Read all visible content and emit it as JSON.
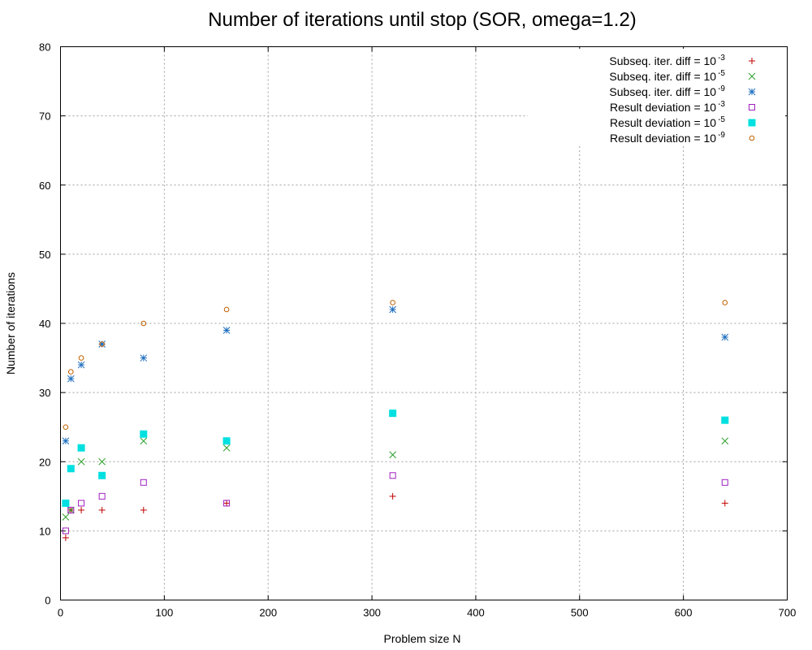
{
  "chart_data": {
    "type": "scatter",
    "title": "Number of iterations until stop (SOR, omega=1.2)",
    "xlabel": "Problem size N",
    "ylabel": "Number of iterations",
    "xlim": [
      0,
      700
    ],
    "ylim": [
      0,
      80
    ],
    "xticks": [
      0,
      100,
      200,
      300,
      400,
      500,
      600,
      700
    ],
    "yticks": [
      0,
      10,
      20,
      30,
      40,
      50,
      60,
      70,
      80
    ],
    "grid": true,
    "legend_position": "top-right",
    "series": [
      {
        "name": "Subseq. iter. diff = 10",
        "sup": "-3",
        "marker": "plus",
        "color": "#c00000",
        "points": [
          [
            5,
            9
          ],
          [
            10,
            13
          ],
          [
            20,
            13
          ],
          [
            40,
            13
          ],
          [
            80,
            13
          ],
          [
            160,
            14
          ],
          [
            320,
            15
          ],
          [
            640,
            14
          ]
        ]
      },
      {
        "name": "Subseq. iter. diff = 10",
        "sup": "-5",
        "marker": "cross",
        "color": "#2ca02c",
        "points": [
          [
            5,
            12
          ],
          [
            10,
            13
          ],
          [
            20,
            20
          ],
          [
            40,
            20
          ],
          [
            80,
            23
          ],
          [
            160,
            22
          ],
          [
            320,
            21
          ],
          [
            640,
            23
          ]
        ]
      },
      {
        "name": "Subseq. iter. diff = 10",
        "sup": "-9",
        "marker": "star",
        "color": "#1f6fbf",
        "points": [
          [
            5,
            23
          ],
          [
            10,
            32
          ],
          [
            20,
            34
          ],
          [
            40,
            37
          ],
          [
            80,
            35
          ],
          [
            160,
            39
          ],
          [
            320,
            42
          ],
          [
            640,
            38
          ]
        ]
      },
      {
        "name": "Result deviation = 10",
        "sup": "-3",
        "marker": "square-open",
        "color": "#a020c0",
        "points": [
          [
            5,
            10
          ],
          [
            10,
            13
          ],
          [
            20,
            14
          ],
          [
            40,
            15
          ],
          [
            80,
            17
          ],
          [
            160,
            14
          ],
          [
            320,
            18
          ],
          [
            640,
            17
          ]
        ]
      },
      {
        "name": "Result deviation = 10",
        "sup": "-5",
        "marker": "square-filled",
        "color": "#00e0e0",
        "points": [
          [
            5,
            14
          ],
          [
            10,
            19
          ],
          [
            20,
            22
          ],
          [
            40,
            18
          ],
          [
            80,
            24
          ],
          [
            160,
            23
          ],
          [
            320,
            27
          ],
          [
            640,
            26
          ]
        ]
      },
      {
        "name": "Result deviation = 10",
        "sup": "-9",
        "marker": "circle-open",
        "color": "#c06000",
        "points": [
          [
            5,
            25
          ],
          [
            10,
            33
          ],
          [
            20,
            35
          ],
          [
            40,
            37
          ],
          [
            80,
            40
          ],
          [
            160,
            42
          ],
          [
            320,
            43
          ],
          [
            640,
            43
          ]
        ]
      }
    ]
  }
}
